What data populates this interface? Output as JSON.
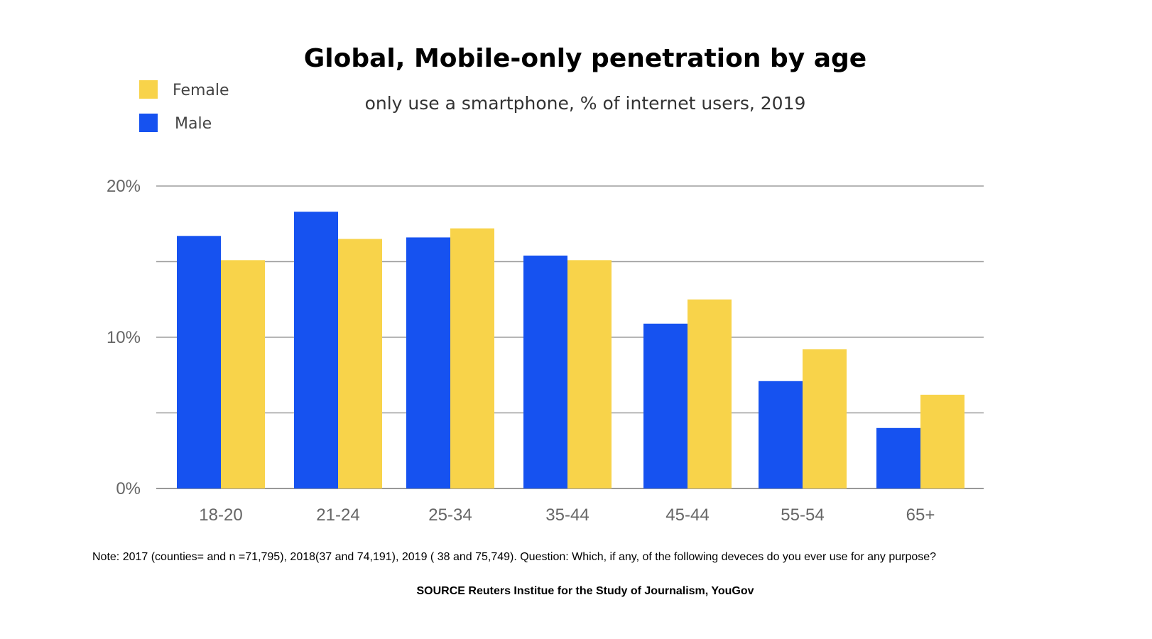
{
  "chart_data": {
    "type": "bar",
    "title": "Global, Mobile-only penetration by age",
    "subtitle": "only use a smartphone, % of internet users, 2019",
    "categories": [
      "18-20",
      "21-24",
      "25-34",
      "35-44",
      "45-44",
      "55-54",
      "65+"
    ],
    "series": [
      {
        "name": "Male",
        "color": "#1652f0",
        "values": [
          16.7,
          18.3,
          16.6,
          15.4,
          10.9,
          7.1,
          4.0
        ]
      },
      {
        "name": "Female",
        "color": "#f8d34a",
        "values": [
          15.1,
          16.5,
          17.2,
          15.1,
          12.5,
          9.2,
          6.2
        ]
      }
    ],
    "legend": {
      "position": "top-left",
      "entries": [
        "Female",
        "Male"
      ]
    },
    "ylim": [
      0,
      20
    ],
    "yticks": [
      {
        "value": 0,
        "label": "0%"
      },
      {
        "value": 10,
        "label": "10%"
      },
      {
        "value": 20,
        "label": "20%"
      }
    ],
    "gridlines": [
      0,
      5,
      10,
      15,
      20
    ],
    "grid": true,
    "xlabel": "",
    "ylabel": "",
    "note": "Note: 2017 (counties= and n =71,795), 2018(37 and 74,191), 2019 ( 38 and 75,749). Question: Which, if any, of the following deveces do you ever use for any purpose?",
    "source": "SOURCE  Reuters Institue for the Study of Journalism, YouGov"
  }
}
